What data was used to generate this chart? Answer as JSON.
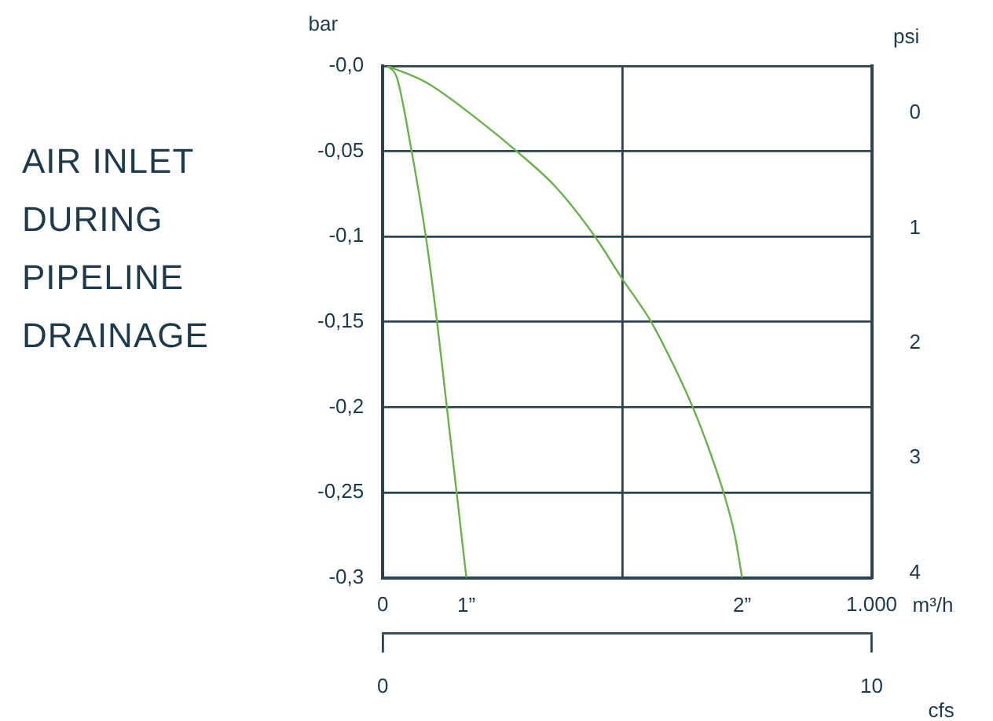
{
  "chart_data": {
    "type": "line",
    "title": "AIR INLET DURING PIPELINE DRAINAGE",
    "xlabel": "m³/h",
    "ylabel": "bar",
    "y2label": "psi",
    "x2label": "cfs",
    "xlim": [
      0,
      1000
    ],
    "xticks": [
      0,
      {
        "value": 490,
        "label": null
      },
      {
        "value": 1000,
        "label": "1.000"
      }
    ],
    "x2lim": [
      0,
      10
    ],
    "x2ticks": [
      0,
      10
    ],
    "ylim": [
      -0.3,
      0
    ],
    "yticks": [
      {
        "value": 0,
        "label": "-0,0"
      },
      {
        "value": -0.05,
        "label": "-0,05"
      },
      {
        "value": -0.1,
        "label": "-0,1"
      },
      {
        "value": -0.15,
        "label": "-0,15"
      },
      {
        "value": -0.2,
        "label": "-0,2"
      },
      {
        "value": -0.25,
        "label": "-0,25"
      },
      {
        "value": -0.3,
        "label": "-0,3"
      }
    ],
    "y2lim": [
      4.04,
      -0.41
    ],
    "y2ticks": [
      0,
      1,
      2,
      3,
      4
    ],
    "grid": true,
    "legend": false,
    "marker": "none",
    "line_style": "solid",
    "series": [
      {
        "name": "1”",
        "color": "#6ab04c",
        "x": [
          10,
          29,
          59,
          88,
          111,
          131,
          151,
          171
        ],
        "values": [
          0,
          -0.007,
          -0.05,
          -0.1,
          -0.15,
          -0.2,
          -0.25,
          -0.3
        ]
      },
      {
        "name": "2”",
        "color": "#6ab04c",
        "x": [
          10,
          91,
          206,
          274,
          354,
          434,
          488,
          549,
          594,
          634,
          669,
          697,
          720,
          735
        ],
        "values": [
          0,
          -0.01,
          -0.034,
          -0.05,
          -0.071,
          -0.1,
          -0.124,
          -0.15,
          -0.175,
          -0.2,
          -0.226,
          -0.25,
          -0.275,
          -0.3
        ]
      }
    ]
  }
}
